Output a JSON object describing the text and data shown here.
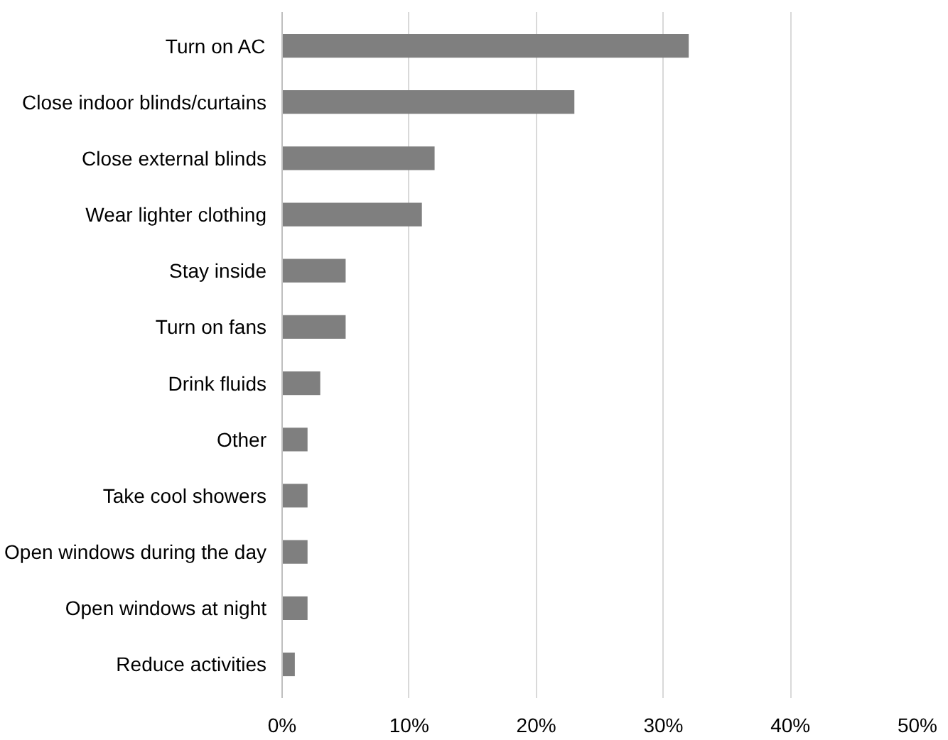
{
  "chart_data": {
    "type": "bar",
    "orientation": "horizontal",
    "categories": [
      "Turn on AC",
      "Close indoor blinds/curtains",
      "Close external blinds",
      "Wear lighter clothing",
      "Stay inside",
      "Turn on fans",
      "Drink fluids",
      "Other",
      "Take cool showers",
      "Open windows during the day",
      "Open windows at night",
      "Reduce activities"
    ],
    "values": [
      32,
      23,
      12,
      11,
      5,
      5,
      3,
      2,
      2,
      2,
      2,
      1
    ],
    "color": "#7f7f7f",
    "xlim": [
      0,
      50
    ],
    "xticks": [
      {
        "value": 0,
        "label": "0%"
      },
      {
        "value": 10,
        "label": "10%"
      },
      {
        "value": 20,
        "label": "20%"
      },
      {
        "value": 30,
        "label": "30%"
      },
      {
        "value": 40,
        "label": "40%"
      },
      {
        "value": 50,
        "label": "50%"
      }
    ],
    "grid": "x"
  }
}
